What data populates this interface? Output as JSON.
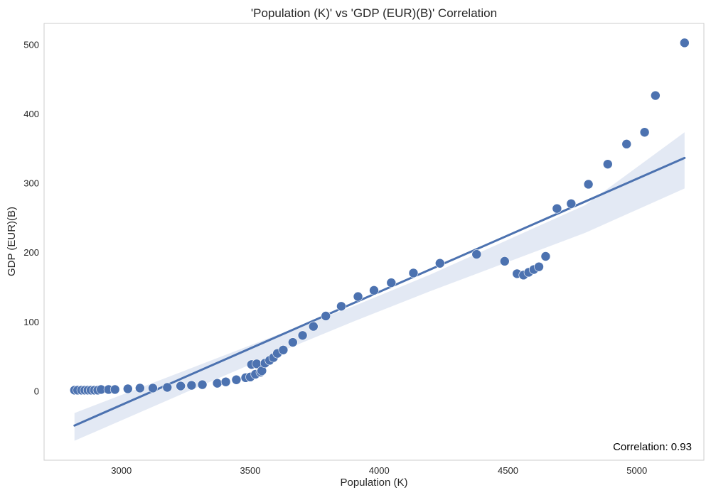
{
  "chart_data": {
    "type": "scatter",
    "title": "'Population (K)' vs 'GDP (EUR)(B)' Correlation",
    "xlabel": "Population (K)",
    "ylabel": "GDP (EUR)(B)",
    "xlim": [
      2700,
      5260
    ],
    "ylim": [
      -100,
      530
    ],
    "xticks": [
      3000,
      3500,
      4000,
      4500,
      5000
    ],
    "yticks": [
      0,
      100,
      200,
      300,
      400,
      500
    ],
    "grid": false,
    "annotation": "Correlation: 0.93",
    "colors": {
      "points": "#4c72b0",
      "line": "#4c72b0",
      "band": "#c7d3ea",
      "frame": "#cccccc"
    },
    "regression": {
      "x": [
        2818,
        5185
      ],
      "y": [
        -50,
        336
      ]
    },
    "confidence_band": {
      "x": [
        2818,
        3300,
        3600,
        3900,
        4200,
        4500,
        4800,
        5185
      ],
      "upper": [
        -32,
        37,
        80,
        122,
        168,
        218,
        268,
        373
      ],
      "lower": [
        -72,
        6,
        54,
        100,
        144,
        186,
        228,
        292
      ]
    },
    "points": {
      "x": [
        2818,
        2830,
        2845,
        2858,
        2870,
        2882,
        2895,
        2908,
        2921,
        2950,
        2975,
        3025,
        3072,
        3122,
        3178,
        3230,
        3272,
        3314,
        3372,
        3405,
        3446,
        3482,
        3500,
        3505,
        3520,
        3525,
        3540,
        3545,
        3557,
        3575,
        3590,
        3605,
        3628,
        3665,
        3703,
        3745,
        3793,
        3853,
        3918,
        3980,
        4047,
        4133,
        4236,
        4378,
        4487,
        4535,
        4560,
        4580,
        4600,
        4620,
        4646,
        4690,
        4745,
        4812,
        4887,
        4960,
        5030,
        5072,
        5185
      ],
      "y": [
        1,
        1,
        1,
        1,
        1,
        1,
        1,
        1,
        2,
        2,
        2,
        3,
        4,
        4,
        5,
        7,
        8,
        9,
        11,
        13,
        16,
        19,
        20,
        38,
        24,
        39,
        27,
        29,
        40,
        44,
        48,
        54,
        59,
        70,
        80,
        93,
        108,
        122,
        136,
        145,
        156,
        170,
        184,
        197,
        187,
        169,
        167,
        171,
        175,
        179,
        194,
        263,
        270,
        298,
        327,
        356,
        373,
        426,
        502
      ]
    }
  }
}
